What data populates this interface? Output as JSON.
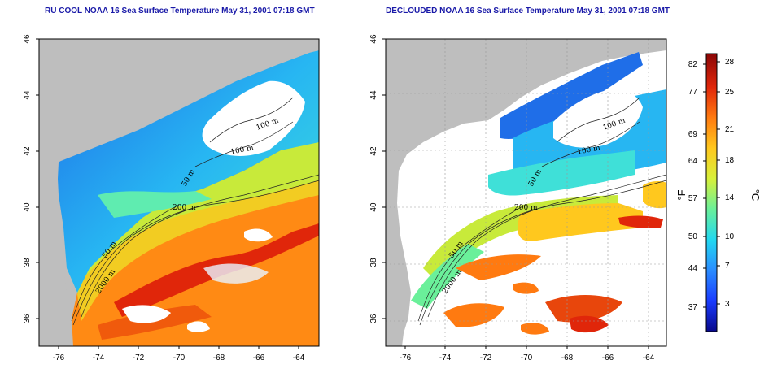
{
  "titles": {
    "left": "RU COOL NOAA 16 Sea Surface Temperature May 31, 2001 07:18 GMT",
    "right": "DECLOUDED NOAA 16 Sea Surface Temperature May 31, 2001 07:18 GMT"
  },
  "axes": {
    "y_ticks": [
      "46",
      "44",
      "42",
      "40",
      "38",
      "36"
    ],
    "x_ticks": [
      "-76",
      "-74",
      "-72",
      "-70",
      "-68",
      "-66",
      "-64"
    ]
  },
  "contour_labels": {
    "left": [
      "100 m",
      "100 m",
      "50 m",
      "200 m",
      "50 m",
      "2000 m"
    ],
    "right": [
      "100 m",
      "100 m",
      "50 m",
      "200 m",
      "50 m",
      "2000 m"
    ]
  },
  "colorbar": {
    "fahrenheit_ticks": [
      "82",
      "77",
      "69",
      "64",
      "57",
      "50",
      "44",
      "37"
    ],
    "celsius_ticks": [
      "28",
      "25",
      "21",
      "18",
      "14",
      "10",
      "7",
      "3"
    ],
    "fahrenheit_unit": "°F",
    "celsius_unit": "°C",
    "colors": [
      "#08088a",
      "#1a3cff",
      "#2a8cff",
      "#22d8f0",
      "#6af09a",
      "#d8f03a",
      "#ffc81e",
      "#ff7a10",
      "#e0260a",
      "#8a0606"
    ]
  },
  "colors": {
    "land": "#bebebe",
    "title": "#1a1aa8"
  }
}
